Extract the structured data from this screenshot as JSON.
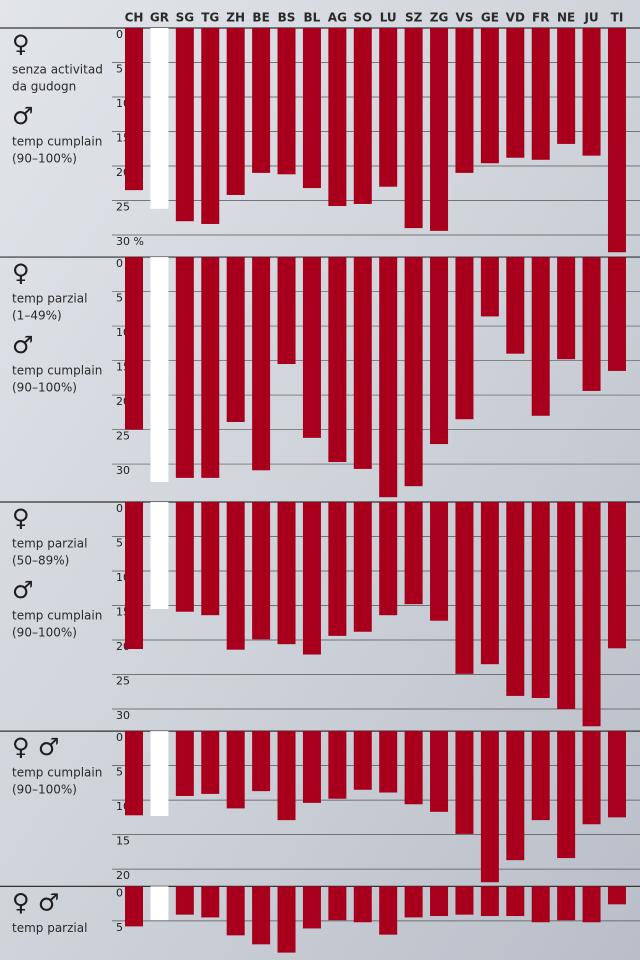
{
  "chart_data": [
    {
      "type": "bar",
      "categories": [
        "CH",
        "GR",
        "SG",
        "TG",
        "ZH",
        "BE",
        "BS",
        "BL",
        "AG",
        "SO",
        "LU",
        "SZ",
        "ZG",
        "VS",
        "GE",
        "VD",
        "FR",
        "NE",
        "JU",
        "TI"
      ],
      "groups": [
        {
          "symbol": "♀",
          "label": [
            "senza activitad",
            "da gudogn"
          ]
        },
        {
          "symbol": "♂",
          "label": [
            "temp cumplain",
            "(90–100%)"
          ]
        }
      ],
      "values": [
        23.5,
        26.2,
        28,
        28.4,
        24.2,
        21,
        21.2,
        23.2,
        25.8,
        25.5,
        23,
        29,
        29.4,
        21,
        19.6,
        18.8,
        19.1,
        16.8,
        18.5,
        32.5
      ],
      "color": "#a8001c",
      "highlight": {
        "category": "GR",
        "color": "#ffffff"
      },
      "ylim": [
        0,
        33.2
      ],
      "yticks": [
        0,
        5,
        10,
        15,
        20,
        25,
        {
          "value": 30,
          "label": "30 %"
        }
      ],
      "grid": true
    },
    {
      "type": "bar",
      "groups": [
        {
          "symbol": "♀",
          "label": [
            "temp parzial",
            "(1–49%)"
          ]
        },
        {
          "symbol": "♂",
          "label": [
            "temp cumplain",
            "(90–100%)"
          ]
        }
      ],
      "values": [
        25,
        32.6,
        32,
        32,
        23.9,
        30.9,
        15.5,
        26.2,
        29.7,
        30.7,
        34.8,
        33.2,
        27.1,
        23.5,
        8.6,
        14,
        23,
        14.8,
        19.4,
        16.5
      ],
      "color": "#a8001c",
      "highlight": {
        "category": "GR",
        "color": "#ffffff"
      },
      "ylim": [
        0,
        35.5
      ],
      "yticks": [
        0,
        5,
        10,
        15,
        20,
        25,
        30
      ],
      "grid": true
    },
    {
      "type": "bar",
      "groups": [
        {
          "symbol": "♀",
          "label": [
            "temp parzial",
            "(50–89%)"
          ]
        },
        {
          "symbol": "♂",
          "label": [
            "temp cumplain",
            "(90–100%)"
          ]
        }
      ],
      "values": [
        21.3,
        15.5,
        15.9,
        16.4,
        21.4,
        19.9,
        20.6,
        22.1,
        19.4,
        18.8,
        16.4,
        14.8,
        17.2,
        24.9,
        23.5,
        28.1,
        28.4,
        30,
        32.5,
        21.2
      ],
      "color": "#a8001c",
      "highlight": {
        "category": "GR",
        "color": "#ffffff"
      },
      "ylim": [
        0,
        33.2
      ],
      "yticks": [
        0,
        5,
        10,
        15,
        20,
        25,
        30
      ],
      "grid": true
    },
    {
      "type": "bar",
      "groups": [
        {
          "symbol": "♀ ♂",
          "label": [
            "temp cumplain",
            "(90–100%)"
          ]
        }
      ],
      "values": [
        12.2,
        12.3,
        9.4,
        9.1,
        11.2,
        8.7,
        12.9,
        10.4,
        9.8,
        8.5,
        8.9,
        10.6,
        11.7,
        14.9,
        21.9,
        18.7,
        12.9,
        18.4,
        13.5,
        12.5
      ],
      "color": "#a8001c",
      "highlight": {
        "category": "GR",
        "color": "#ffffff"
      },
      "ylim": [
        0,
        22.5
      ],
      "yticks": [
        0,
        5,
        10,
        15,
        20
      ],
      "grid": true
    },
    {
      "type": "bar",
      "groups": [
        {
          "symbol": "♀ ♂",
          "label": [
            "temp parzial"
          ]
        }
      ],
      "values": [
        5.8,
        4.9,
        4.1,
        4.5,
        7.1,
        8.4,
        9.6,
        6.1,
        4.9,
        5.2,
        7,
        4.5,
        4.3,
        4.1,
        4.3,
        4.3,
        5.2,
        4.9,
        5.2,
        2.6
      ],
      "color": "#a8001c",
      "highlight": {
        "category": "GR",
        "color": "#ffffff"
      },
      "ylim": [
        0,
        10.6
      ],
      "yticks": [
        0,
        5
      ],
      "grid": true
    }
  ]
}
